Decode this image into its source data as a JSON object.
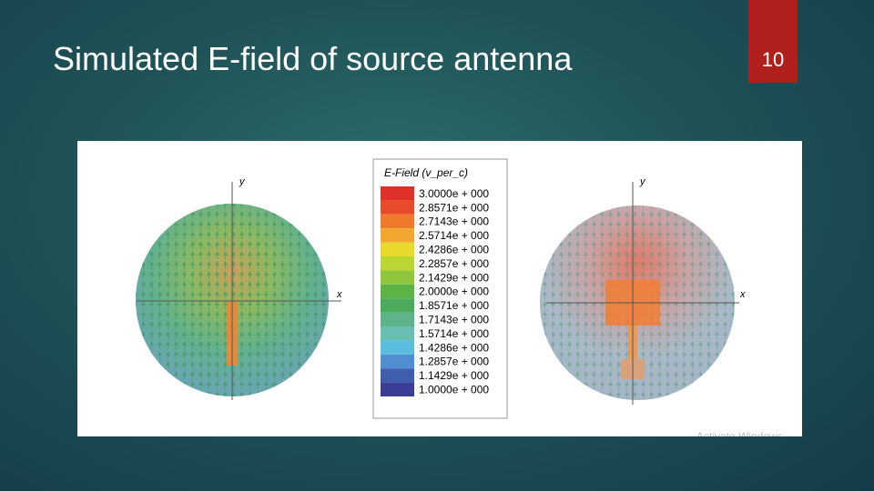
{
  "slide": {
    "title": "Simulated E-field of source antenna",
    "page_number": "10"
  },
  "figure": {
    "legend_title": "E-Field (v_per_c)",
    "legend": [
      {
        "label": "3.0000e + 000",
        "color": "#e0302a"
      },
      {
        "label": "2.8571e + 000",
        "color": "#e84b2a"
      },
      {
        "label": "2.7143e + 000",
        "color": "#ef7a2c"
      },
      {
        "label": "2.5714e + 000",
        "color": "#f2a82e"
      },
      {
        "label": "2.4286e + 000",
        "color": "#e8d92c"
      },
      {
        "label": "2.2857e + 000",
        "color": "#b9d632"
      },
      {
        "label": "2.1429e + 000",
        "color": "#8fc63c"
      },
      {
        "label": "2.0000e + 000",
        "color": "#5cb444"
      },
      {
        "label": "1.8571e + 000",
        "color": "#4aac5a"
      },
      {
        "label": "1.7143e + 000",
        "color": "#5eb38a"
      },
      {
        "label": "1.5714e + 000",
        "color": "#6abfb3"
      },
      {
        "label": "1.4286e + 000",
        "color": "#5bbde0"
      },
      {
        "label": "1.2857e + 000",
        "color": "#4f8fcf"
      },
      {
        "label": "1.1429e + 000",
        "color": "#3f5fae"
      },
      {
        "label": "1.0000e + 000",
        "color": "#3a3e94"
      }
    ],
    "left_axes": {
      "x": "x",
      "y": "y"
    },
    "right_axes": {
      "x": "x",
      "y": "y"
    },
    "watermark": "Activate Windows"
  }
}
